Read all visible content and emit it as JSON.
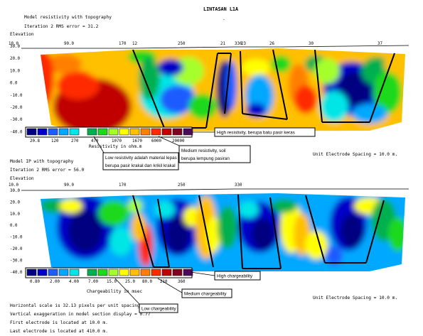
{
  "figure_title": "LINTASAN L1A",
  "header_mark": "-",
  "section1": {
    "title": "Model resistivity with topography",
    "iteration": "Iteration 2 RMS error = 31.2",
    "elevation_label": "Elevation",
    "x_ticks": [
      "10.0",
      "90.0",
      "170",
      "250",
      "330"
    ],
    "y_ticks": [
      "30.0",
      "20.0",
      "10.0",
      "0.0",
      "-10.0",
      "-20.0",
      "-30.0",
      "-40.0"
    ],
    "markers": [
      "12",
      "21",
      "23",
      "26",
      "30",
      "37"
    ],
    "legend_values": [
      "20.8",
      "120",
      "270",
      "470",
      "1070",
      "1670",
      "6000",
      "20000"
    ],
    "legend_title": "Resistivity in ohm.m",
    "spacing": "Unit Electrode Spacing = 10.0 m.",
    "annotations": {
      "high": "High resistivity, berupa batu pasir keras",
      "medium": [
        "Medium resistivity, soil",
        "berupa lempung pasiran"
      ],
      "low": [
        "Low resistivity adalah material lepas",
        "berupa pasir krakal dan krikil krakal"
      ]
    }
  },
  "section2": {
    "title": "Model IP with topography",
    "iteration": "Iteration 2 RMS error = 56.0",
    "elevation_label": "Elevation",
    "x_ticks": [
      "10.0",
      "90.0",
      "170",
      "250",
      "330"
    ],
    "y_ticks": [
      "30.0",
      "20.0",
      "10.0",
      "0.0",
      "-10.0",
      "-20.0",
      "-30.0",
      "-40.0"
    ],
    "legend_values": [
      "0.80",
      "2.00",
      "4.00",
      "7.00",
      "15.0",
      "25.0",
      "80.0",
      "210",
      "360"
    ],
    "legend_title": "Chargeability in msec",
    "spacing": "Unit Electrode Spacing = 10.0 m.",
    "annotations": {
      "high": "High chargeability",
      "medium": "Medium chargeability",
      "low": "Low chargeability"
    }
  },
  "footer": [
    "Horizontal scale is 32.13 pixels per unit spacing",
    "Vertical exaggeration in model section display = 0.77",
    "First electrode is located at 10.0  m.",
    "Last electrode is located at 410.0 m."
  ],
  "colors": {
    "scale": [
      "#000080",
      "#0000c8",
      "#1f5cff",
      "#00a8ff",
      "#00e6e6",
      "#00b050",
      "#1cd91c",
      "#a5ff2a",
      "#ffff00",
      "#ffc000",
      "#ff8000",
      "#ff2a00",
      "#c00000",
      "#800020",
      "#4b0a57"
    ]
  }
}
